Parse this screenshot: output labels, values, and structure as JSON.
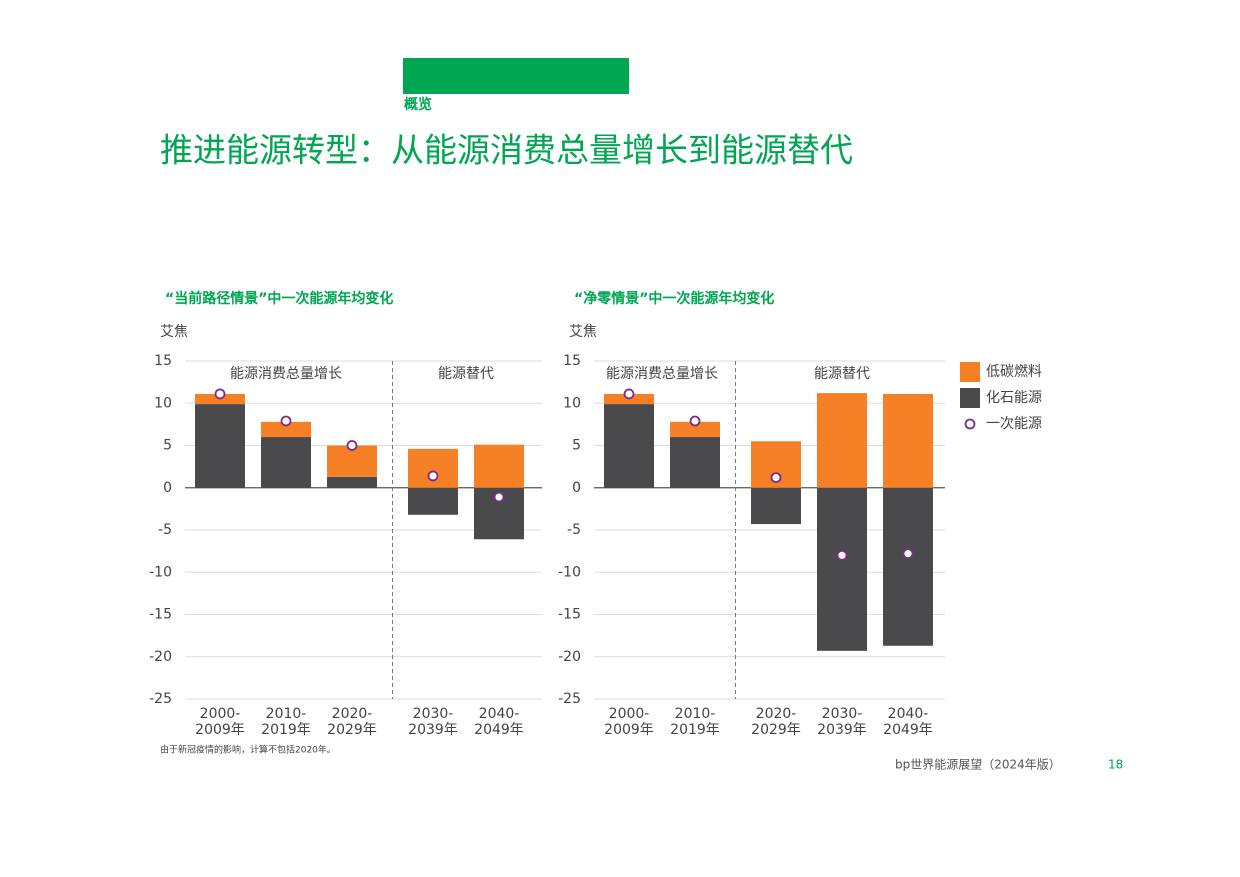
{
  "header": {
    "section": "概览",
    "title": "推进能源转型：从能源消费总量增长到能源替代"
  },
  "footer": {
    "source": "bp世界能源展望（2024年版）",
    "page_number": "18"
  },
  "chart_data": [
    {
      "type": "bar",
      "stacked": true,
      "title": "“当前路径情景”中一次能源年均变化",
      "ylabel": "艾焦",
      "annotations": [
        "能源消费总量增长",
        "能源替代"
      ],
      "note": "由于新冠疫情的影响，计算不包括2020年。",
      "categories": [
        "2000-2009年",
        "2010-2019年",
        "2020-2029年",
        "2030-2039年",
        "2040-2049年"
      ],
      "series": [
        {
          "name": "低碳燃料",
          "color": "#f58025",
          "values": [
            1.2,
            1.8,
            3.7,
            4.6,
            5.1
          ]
        },
        {
          "name": "化石能源",
          "color": "#4a4a4c",
          "values": [
            9.9,
            6.0,
            1.3,
            -3.2,
            -6.1
          ]
        },
        {
          "name": "一次能源",
          "color": "#7b2c8e",
          "type": "scatter",
          "values": [
            11.1,
            7.9,
            5.0,
            1.4,
            -1.1
          ]
        }
      ],
      "ylim": [
        -25,
        15
      ],
      "yticks": [
        -25,
        -20,
        -15,
        -10,
        -5,
        0,
        5,
        10,
        15
      ],
      "grid": true
    },
    {
      "type": "bar",
      "stacked": true,
      "title": "“净零情景”中一次能源年均变化",
      "ylabel": "艾焦",
      "annotations": [
        "能源消费总量增长",
        "能源替代"
      ],
      "categories": [
        "2000-2009年",
        "2010-2019年",
        "2020-2029年",
        "2030-2039年",
        "2040-2049年"
      ],
      "series": [
        {
          "name": "低碳燃料",
          "color": "#f58025",
          "values": [
            1.2,
            1.8,
            5.5,
            11.2,
            11.1
          ]
        },
        {
          "name": "化石能源",
          "color": "#4a4a4c",
          "values": [
            9.9,
            6.0,
            -4.3,
            -19.3,
            -18.7
          ]
        },
        {
          "name": "一次能源",
          "color": "#7b2c8e",
          "type": "scatter",
          "values": [
            11.1,
            7.9,
            1.2,
            -8.0,
            -7.8
          ]
        }
      ],
      "ylim": [
        -25,
        15
      ],
      "yticks": [
        -25,
        -20,
        -15,
        -10,
        -5,
        0,
        5,
        10,
        15
      ],
      "grid": true,
      "legend": "right"
    }
  ]
}
